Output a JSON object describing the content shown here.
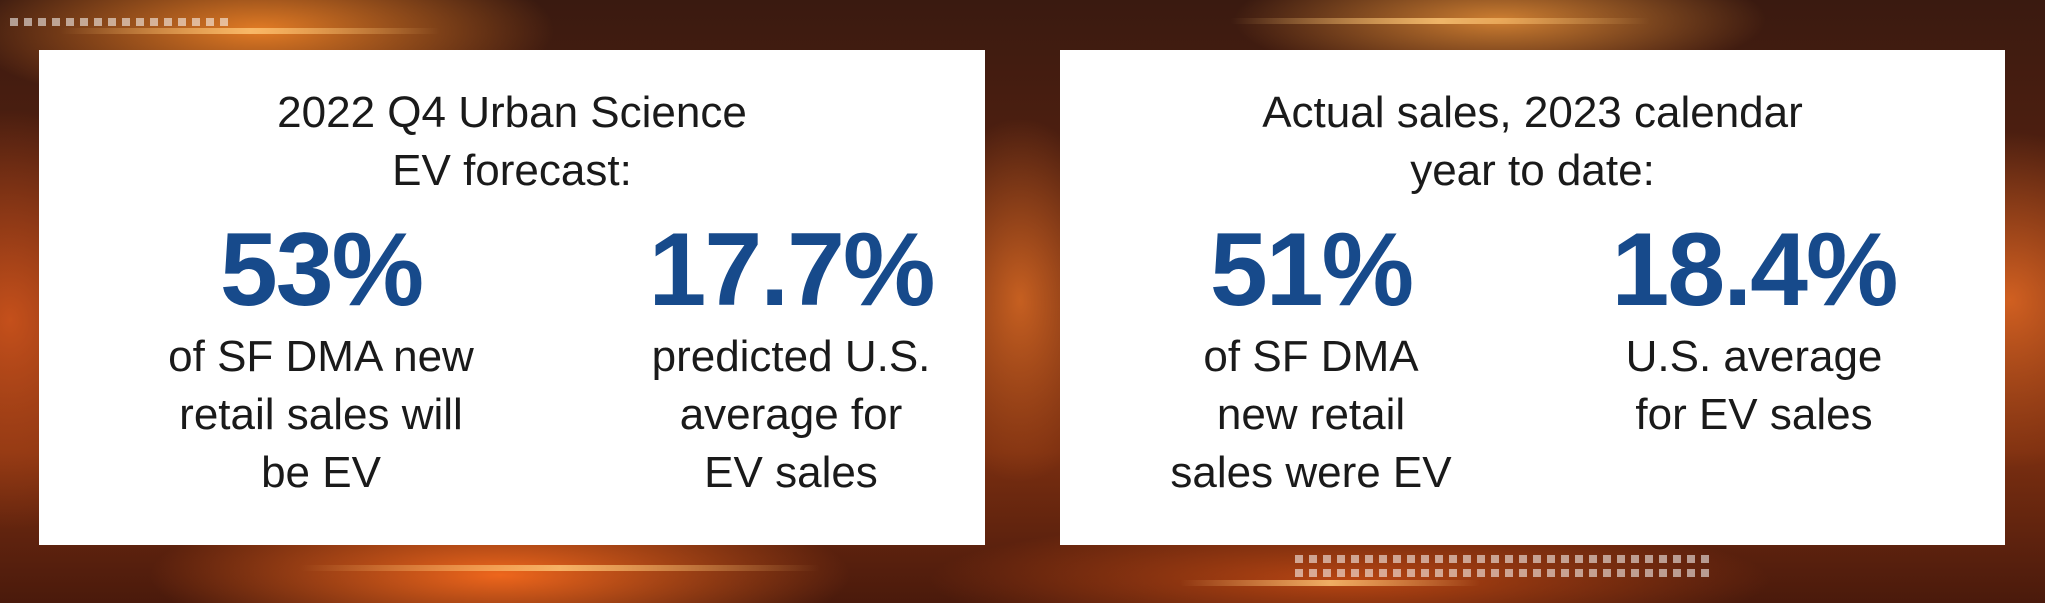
{
  "panels": [
    {
      "title": "2022 Q4 Urban Science\nEV forecast:",
      "stats": [
        {
          "value": "53%",
          "description": "of SF DMA new\nretail sales will\nbe EV"
        },
        {
          "value": "17.7%",
          "description": "predicted U.S.\naverage for\nEV sales"
        }
      ]
    },
    {
      "title": "Actual sales, 2023 calendar\nyear to date:",
      "stats": [
        {
          "value": "51%",
          "description": "of SF DMA\nnew retail\nsales were EV"
        },
        {
          "value": "18.4%",
          "description": "U.S. average\nfor EV sales"
        }
      ]
    }
  ],
  "colors": {
    "stat_value": "#174a8b",
    "card_background": "#ffffff",
    "text": "#1a1a1a"
  }
}
